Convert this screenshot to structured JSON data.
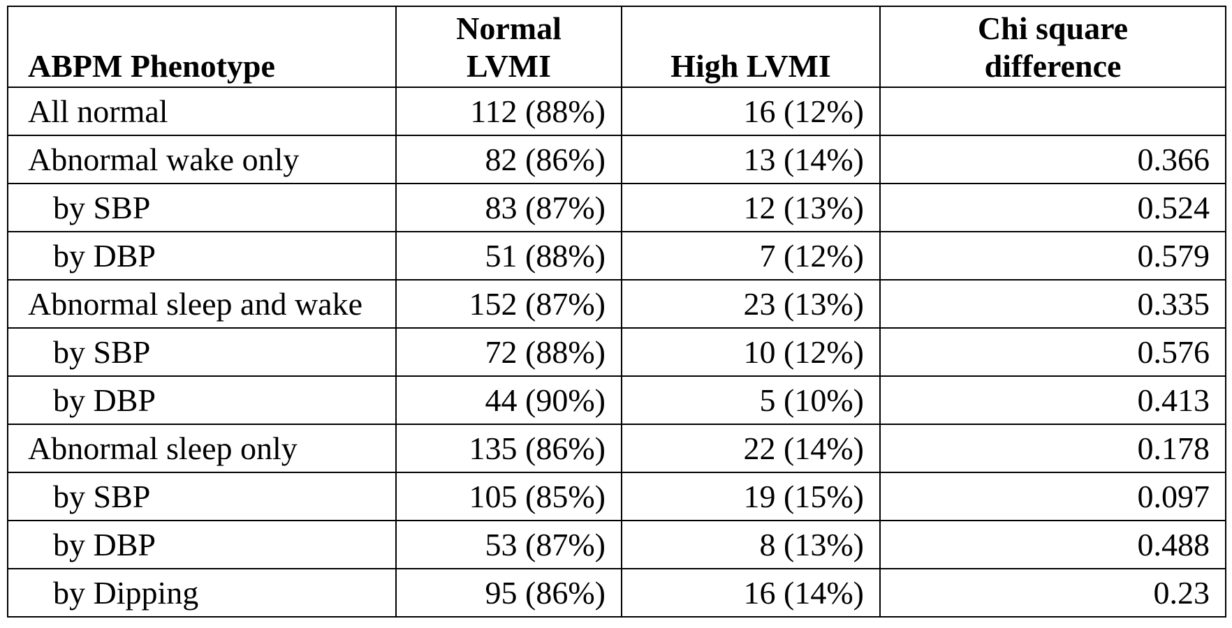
{
  "table": {
    "headers": {
      "phenotype": "ABPM Phenotype",
      "normal_line1": "Normal",
      "normal_line2": "LVMI",
      "high": "High LVMI",
      "chi_line1": "Chi square",
      "chi_line2": "difference"
    },
    "rows": [
      {
        "label": "All normal",
        "normal": "112 (88%)",
        "high": "16 (12%)",
        "chi": ""
      },
      {
        "label": "Abnormal wake only",
        "normal": "82 (86%)",
        "high": "13 (14%)",
        "chi": "0.366"
      },
      {
        "label": "by SBP",
        "normal": "83 (87%)",
        "high": "12 (13%)",
        "chi": "0.524"
      },
      {
        "label": "by DBP",
        "normal": "51 (88%)",
        "high": "7 (12%)",
        "chi": "0.579"
      },
      {
        "label": "Abnormal sleep and wake",
        "normal": "152 (87%)",
        "high": "23 (13%)",
        "chi": "0.335"
      },
      {
        "label": "by SBP",
        "normal": "72 (88%)",
        "high": "10 (12%)",
        "chi": "0.576"
      },
      {
        "label": "by DBP",
        "normal": "44 (90%)",
        "high": "5 (10%)",
        "chi": "0.413"
      },
      {
        "label": "Abnormal sleep only",
        "normal": "135 (86%)",
        "high": "22 (14%)",
        "chi": "0.178"
      },
      {
        "label": "by SBP",
        "normal": "105 (85%)",
        "high": "19 (15%)",
        "chi": "0.097"
      },
      {
        "label": "by DBP",
        "normal": "53 (87%)",
        "high": "8 (13%)",
        "chi": "0.488"
      },
      {
        "label": "by Dipping",
        "normal": "95 (86%)",
        "high": "16 (14%)",
        "chi": "0.23"
      }
    ]
  }
}
